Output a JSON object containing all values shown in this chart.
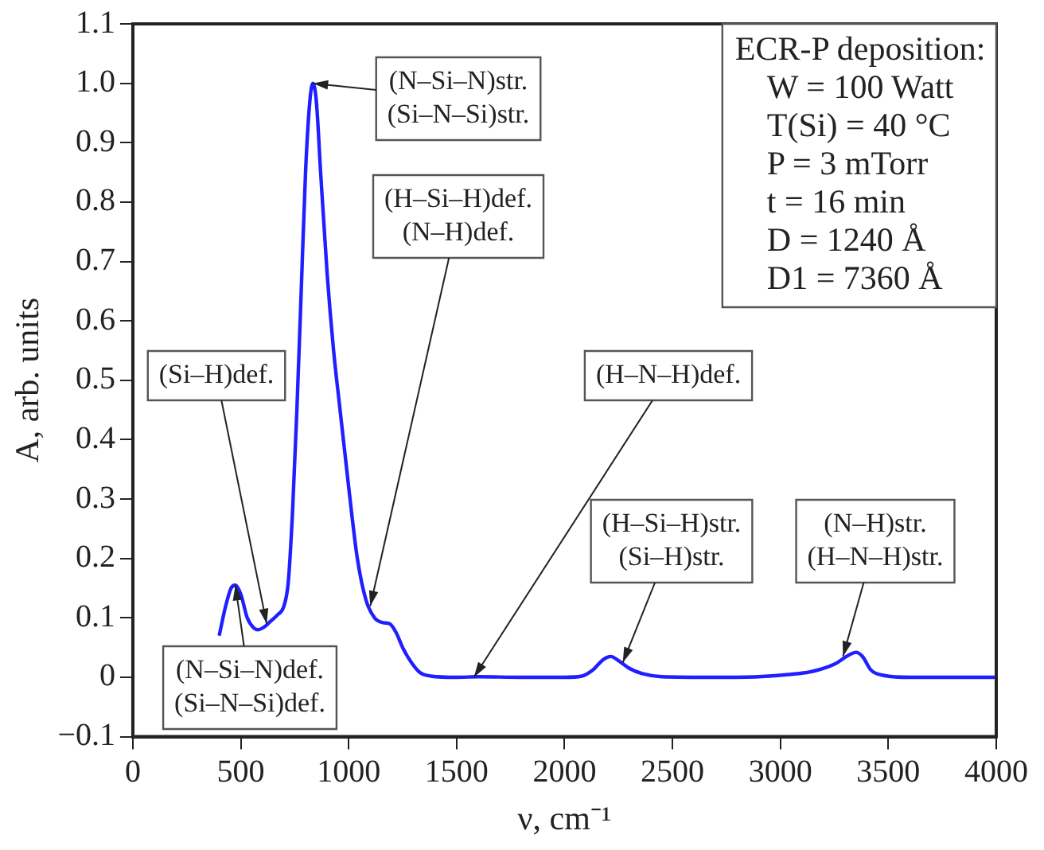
{
  "chart_data": {
    "type": "line",
    "xlabel": "ν, cm⁻¹",
    "ylabel": "A, arb. units",
    "x": [
      400,
      430,
      455,
      475,
      500,
      530,
      560,
      580,
      610,
      640,
      670,
      700,
      720,
      740,
      760,
      780,
      800,
      820,
      834,
      850,
      870,
      900,
      930,
      960,
      1000,
      1040,
      1080,
      1120,
      1160,
      1190,
      1220,
      1250,
      1290,
      1330,
      1380,
      1500,
      1600,
      1800,
      2000,
      2080,
      2130,
      2180,
      2215,
      2250,
      2300,
      2360,
      2450,
      2700,
      2900,
      3050,
      3150,
      3250,
      3320,
      3350,
      3380,
      3420,
      3480,
      3600,
      4000
    ],
    "series": [
      {
        "color": "#1f1fff",
        "values": [
          0.07,
          0.12,
          0.15,
          0.155,
          0.14,
          0.1,
          0.083,
          0.08,
          0.085,
          0.095,
          0.105,
          0.12,
          0.16,
          0.28,
          0.45,
          0.65,
          0.85,
          0.97,
          1.0,
          0.97,
          0.85,
          0.68,
          0.55,
          0.45,
          0.32,
          0.2,
          0.13,
          0.1,
          0.092,
          0.09,
          0.075,
          0.05,
          0.025,
          0.008,
          0.002,
          0,
          0.001,
          0,
          0,
          0.002,
          0.012,
          0.03,
          0.035,
          0.028,
          0.015,
          0.006,
          0.001,
          0,
          0.001,
          0.005,
          0.01,
          0.022,
          0.038,
          0.042,
          0.035,
          0.012,
          0.003,
          0,
          0
        ]
      }
    ],
    "xlim": [
      0,
      4000
    ],
    "xticks": [
      0,
      500,
      1000,
      1500,
      2000,
      2500,
      3000,
      3500,
      4000
    ],
    "ylim": [
      -0.1,
      1.1
    ],
    "yticks": [
      {
        "value": -0.1,
        "label": "−0.1"
      },
      0,
      0.1,
      0.2,
      0.3,
      0.4,
      0.5,
      0.6,
      0.7,
      0.8,
      0.9,
      {
        "value": 1,
        "label": "1.0"
      },
      1.1
    ],
    "grid": false,
    "legend": false,
    "marker": "none",
    "line_style": "solid",
    "annotations": [
      {
        "text": "(N–Si–N)str.\n(Si–N–Si)str.",
        "x": 834,
        "y": 1.0
      },
      {
        "text": "(Si–H)def.",
        "x": 620,
        "y": 0.09
      },
      {
        "text": "(H–Si–H)def.\n(N–H)def.",
        "x": 1100,
        "y": 0.12
      },
      {
        "text": "(H–N–H)def.",
        "x": 1580,
        "y": 0.0
      },
      {
        "text": "(N–Si–N)def.\n(Si–N–Si)def.",
        "x": 475,
        "y": 0.155
      },
      {
        "text": "(H–Si–H)str.\n(Si–H)str.",
        "x": 2270,
        "y": 0.025
      },
      {
        "text": "(N–H)str.\n(H–N–H)str.",
        "x": 3290,
        "y": 0.035
      },
      "ECR-P deposition:\nW = 100 Watt\nT(Si) = 40 °C\nP = 3 mTorr\nt = 16 min\nD = 1240 Å\nD1 = 7360 Å"
    ]
  }
}
